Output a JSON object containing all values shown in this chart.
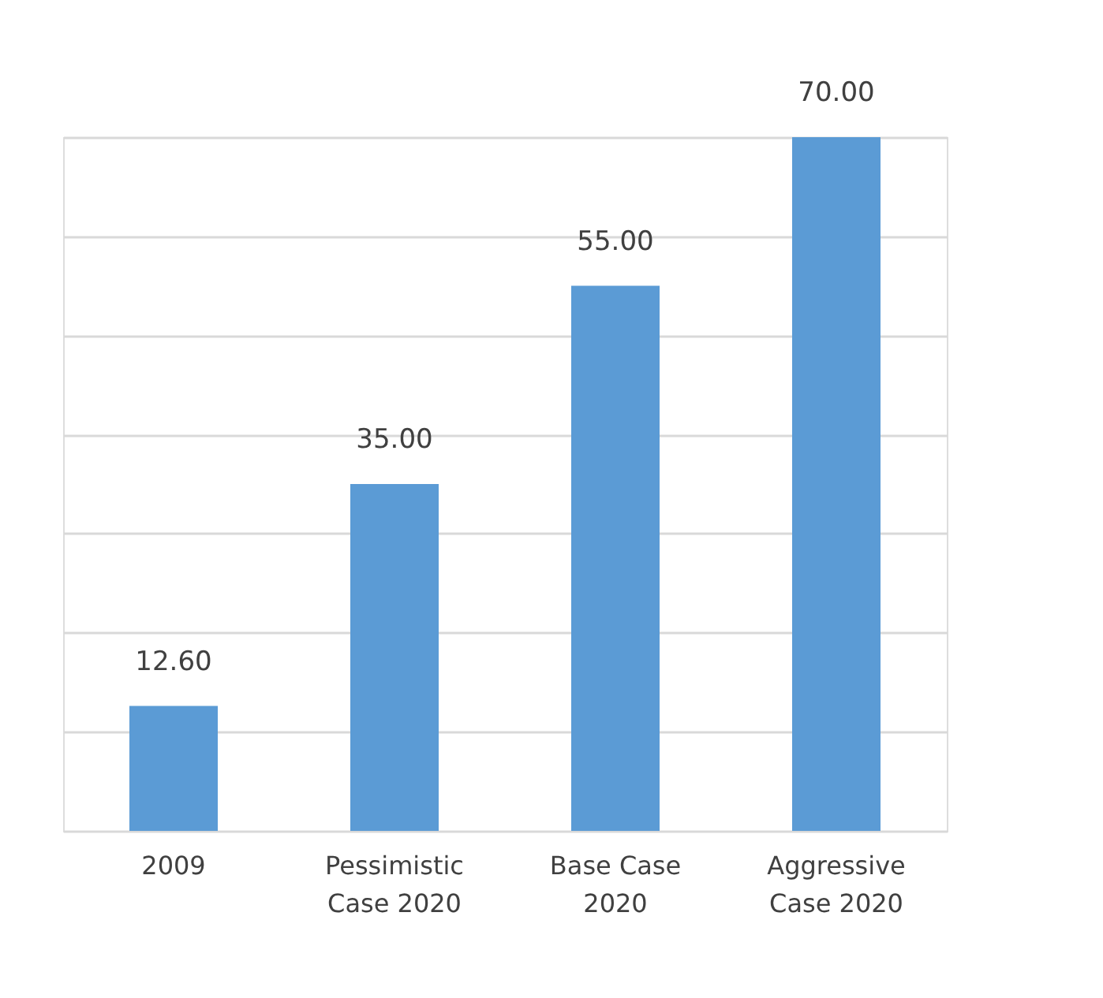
{
  "chart_data": {
    "type": "bar",
    "categories": [
      "2009",
      "Pessimistic\nCase 2020",
      "Base Case\n2020",
      "Aggressive\nCase 2020"
    ],
    "values": [
      12.6,
      35.0,
      55.0,
      70.0
    ],
    "value_labels": [
      "12.60",
      "35.00",
      "55.00",
      "70.00"
    ],
    "color": "#5b9bd5",
    "ylim": [
      0,
      70
    ],
    "yticks": [
      {
        "value": 0,
        "label": null
      },
      {
        "value": 10,
        "label": null
      },
      {
        "value": 20,
        "label": null
      },
      {
        "value": 30,
        "label": null
      },
      {
        "value": 40,
        "label": null
      },
      {
        "value": 50,
        "label": null
      },
      {
        "value": 60,
        "label": null
      },
      {
        "value": 70,
        "label": null
      }
    ],
    "grid": "y",
    "tick_labels": "x"
  }
}
